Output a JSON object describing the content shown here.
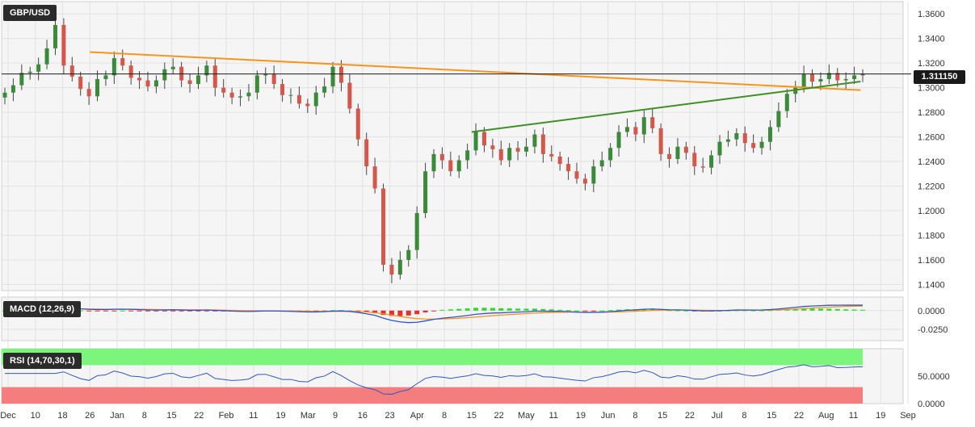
{
  "chart_data": [
    {
      "type": "candlestick",
      "title": "GBP/USD",
      "last_price_label": "1.311150",
      "y_ticks": [
        "1.3600",
        "1.3400",
        "1.3200",
        "1.3000",
        "1.2800",
        "1.2600",
        "1.2400",
        "1.2200",
        "1.2000",
        "1.1800",
        "1.1600",
        "1.1400"
      ],
      "ylim": [
        1.135,
        1.37
      ],
      "x_tick_labels": [
        "Dec",
        "10",
        "18",
        "26",
        "Jan",
        "8",
        "15",
        "22",
        "Feb",
        "11",
        "19",
        "Mar",
        "9",
        "16",
        "23",
        "Apr",
        "8",
        "15",
        "22",
        "May",
        "11",
        "19",
        "Jun",
        "8",
        "15",
        "22",
        "Jul",
        "8",
        "15",
        "22",
        "Aug",
        "11",
        "19",
        "Sep"
      ],
      "grid": true,
      "series": [
        {
          "name": "",
          "daily_close_estimates": [
            1.296,
            1.302,
            1.312,
            1.313,
            1.319,
            1.332,
            1.351,
            1.318,
            1.309,
            1.299,
            1.293,
            1.307,
            1.31,
            1.324,
            1.318,
            1.308,
            1.306,
            1.301,
            1.306,
            1.315,
            1.317,
            1.306,
            1.303,
            1.31,
            1.318,
            1.3,
            1.296,
            1.292,
            1.293,
            1.296,
            1.31,
            1.311,
            1.303,
            1.294,
            1.294,
            1.287,
            1.285,
            1.296,
            1.301,
            1.317,
            1.304,
            1.283,
            1.258,
            1.236,
            1.218,
            1.156,
            1.148,
            1.16,
            1.168,
            1.198,
            1.232,
            1.246,
            1.241,
            1.232,
            1.241,
            1.249,
            1.264,
            1.253,
            1.25,
            1.241,
            1.251,
            1.248,
            1.252,
            1.262,
            1.246,
            1.244,
            1.238,
            1.232,
            1.226,
            1.222,
            1.236,
            1.241,
            1.251,
            1.264,
            1.268,
            1.262,
            1.276,
            1.267,
            1.246,
            1.242,
            1.252,
            1.247,
            1.236,
            1.235,
            1.245,
            1.256,
            1.258,
            1.263,
            1.255,
            1.251,
            1.256,
            1.268,
            1.281,
            1.295,
            1.3,
            1.311,
            1.305,
            1.307,
            1.312,
            1.306,
            1.307,
            1.31,
            1.311
          ]
        }
      ],
      "trend_lines": [
        {
          "color": "#f7941d",
          "from": {
            "x": "Dec 26",
            "y": 1.329
          },
          "to": {
            "x": "Aug 19",
            "y": 1.298
          }
        },
        {
          "color": "#3f8f26",
          "from": {
            "x": "Apr 15",
            "y": 1.264
          },
          "to": {
            "x": "Aug 19",
            "y": 1.305
          }
        }
      ],
      "horizontal_line": {
        "y": 1.31115,
        "color": "#1a1a1a"
      }
    },
    {
      "type": "line+histogram",
      "title": "MACD (12,26,9)",
      "y_ticks": [
        "0.0000",
        "-0.0250"
      ],
      "ylim": [
        -0.04,
        0.018
      ],
      "series": [
        {
          "name": "",
          "color": "#3155c9",
          "role": "macd_line"
        },
        {
          "name": "",
          "color": "#f7941d",
          "role": "signal_line"
        },
        {
          "name": "",
          "positive_color": "#22dd22",
          "negative_color": "#e03030",
          "role": "histogram"
        }
      ]
    },
    {
      "type": "line",
      "title": "RSI (14,70,30,1)",
      "y_ticks": [
        "50.0000",
        "0.0000"
      ],
      "ylim": [
        0,
        100
      ],
      "overbought": 70,
      "oversold": 30,
      "overbought_zone_color": "#7cf57c",
      "oversold_zone_color": "#f47e7e",
      "series": [
        {
          "name": "",
          "color": "#3155c9"
        }
      ]
    }
  ],
  "colors": {
    "bull_candle": "#3a8a3a",
    "bear_candle": "#d5574a",
    "grid": "#e2e2e2",
    "panel_bg": "#f5f5f5",
    "axis_text": "#333333"
  }
}
